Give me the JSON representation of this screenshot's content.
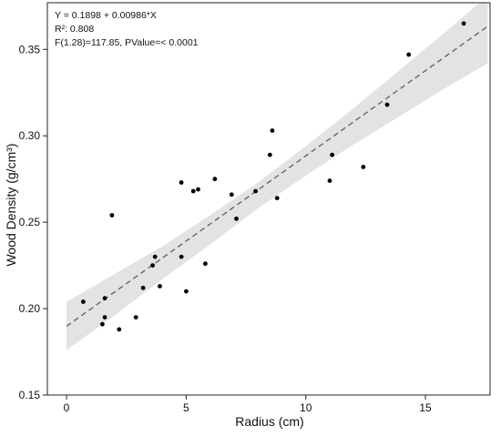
{
  "chart_data": {
    "type": "scatter",
    "xlabel": "Radius (cm)",
    "ylabel": "Wood Density (g/cm³)",
    "xlim": [
      -0.8,
      17.7
    ],
    "ylim": [
      0.15,
      0.377
    ],
    "x_ticks": [
      0,
      5,
      10,
      15
    ],
    "y_ticks": [
      0.15,
      0.2,
      0.25,
      0.3,
      0.35
    ],
    "x_tick_labels": [
      "0",
      "5",
      "10",
      "15"
    ],
    "y_tick_labels": [
      "0.15",
      "0.20",
      "0.25",
      "0.30",
      "0.35"
    ],
    "grid": false,
    "annotations": [
      "Y = 0.1898 + 0.00986*X",
      "R²: 0.808",
      "F(1.28)=117.85, PValue=< 0.0001"
    ],
    "regression": {
      "intercept": 0.1898,
      "slope": 0.00986,
      "x_range": [
        0,
        17.6
      ]
    },
    "confidence_band": {
      "x": [
        0,
        2,
        4,
        6,
        8,
        10,
        12,
        14,
        16,
        17.6
      ],
      "lower": [
        0.176,
        0.196,
        0.217,
        0.237,
        0.258,
        0.277,
        0.295,
        0.312,
        0.329,
        0.342
      ],
      "upper": [
        0.204,
        0.22,
        0.236,
        0.254,
        0.273,
        0.294,
        0.316,
        0.339,
        0.362,
        0.381
      ]
    },
    "points": {
      "x": [
        0.7,
        1.5,
        1.6,
        1.6,
        1.9,
        2.2,
        2.9,
        3.2,
        3.6,
        3.7,
        3.9,
        4.8,
        4.8,
        5.0,
        5.3,
        5.5,
        5.8,
        6.2,
        6.9,
        7.1,
        7.9,
        8.5,
        8.6,
        8.8,
        11.0,
        11.1,
        12.4,
        13.4,
        14.3,
        16.6
      ],
      "y": [
        0.204,
        0.191,
        0.206,
        0.195,
        0.254,
        0.188,
        0.195,
        0.212,
        0.225,
        0.23,
        0.213,
        0.273,
        0.23,
        0.21,
        0.268,
        0.269,
        0.226,
        0.275,
        0.266,
        0.252,
        0.268,
        0.289,
        0.303,
        0.264,
        0.274,
        0.289,
        0.282,
        0.318,
        0.347,
        0.365
      ]
    },
    "colors": {
      "points": "#000000",
      "fit_line": "#666666",
      "band": "#e3e3e3",
      "axes": "#222222"
    }
  }
}
